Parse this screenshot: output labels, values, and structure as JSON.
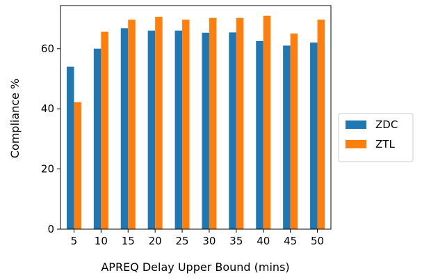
{
  "chart_data": {
    "type": "bar",
    "title": "",
    "xlabel": "APREQ Delay Upper Bound (mins)",
    "ylabel": "Compliance %",
    "categories": [
      "5",
      "10",
      "15",
      "20",
      "25",
      "30",
      "35",
      "40",
      "45",
      "50"
    ],
    "series": [
      {
        "name": "ZDC",
        "color": "#1f77b4",
        "values": [
          54.0,
          60.0,
          66.8,
          66.0,
          66.0,
          65.3,
          65.4,
          62.5,
          61.0,
          62.0
        ]
      },
      {
        "name": "ZTL",
        "color": "#ff7f0e",
        "values": [
          42.2,
          65.6,
          69.6,
          70.6,
          69.6,
          70.2,
          70.2,
          70.9,
          65.0,
          69.6
        ]
      }
    ],
    "ylim": [
      0,
      74.3
    ],
    "yticks": [
      0,
      20,
      40,
      60
    ],
    "grid": false,
    "legend_position": "right-outside"
  }
}
